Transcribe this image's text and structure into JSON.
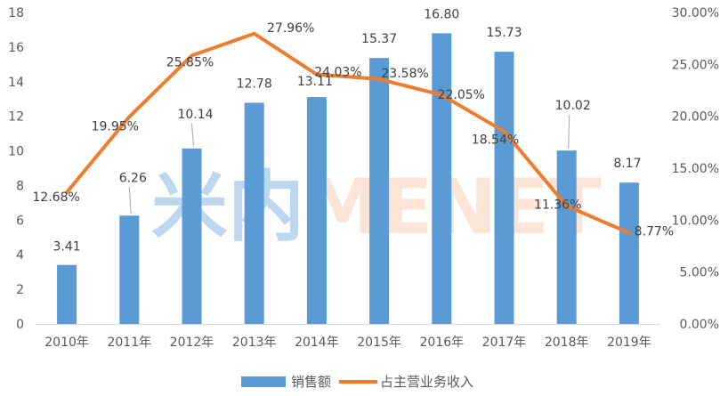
{
  "chart_data": {
    "type": "bar",
    "categories": [
      "2010年",
      "2011年",
      "2012年",
      "2013年",
      "2014年",
      "2015年",
      "2016年",
      "2017年",
      "2018年",
      "2019年"
    ],
    "series": [
      {
        "name": "销售额",
        "type": "bar",
        "axis": "left",
        "color": "#5B9BD5",
        "values": [
          3.41,
          6.26,
          10.14,
          12.78,
          13.11,
          15.37,
          16.8,
          15.73,
          10.02,
          8.17
        ],
        "labels": [
          "3.41",
          "6.26",
          "10.14",
          "12.78",
          "13.11",
          "15.37",
          "16.80",
          "15.73",
          "10.02",
          "8.17"
        ]
      },
      {
        "name": "占主营业务收入",
        "type": "line",
        "axis": "right",
        "color": "#ED7D31",
        "values": [
          12.68,
          19.95,
          25.85,
          27.96,
          24.03,
          23.58,
          22.05,
          18.54,
          11.36,
          8.77
        ],
        "labels": [
          "12.68%",
          "19.95%",
          "25.85%",
          "27.96%",
          "24.03%",
          "23.58%",
          "22.05%",
          "18.54%",
          "11.36%",
          "8.77%"
        ]
      }
    ],
    "left_axis": {
      "ylim": [
        0,
        18
      ],
      "ticks": [
        0,
        2,
        4,
        6,
        8,
        10,
        12,
        14,
        16,
        18
      ],
      "tick_labels": [
        "0",
        "2",
        "4",
        "6",
        "8",
        "10",
        "12",
        "14",
        "16",
        "18"
      ]
    },
    "right_axis": {
      "ylim": [
        0,
        30
      ],
      "ticks": [
        0,
        5,
        10,
        15,
        20,
        25,
        30
      ],
      "tick_labels": [
        "0.00%",
        "5.00%",
        "10.00%",
        "15.00%",
        "20.00%",
        "25.00%",
        "30.00%"
      ]
    },
    "grid": false,
    "legend_position": "bottom",
    "watermark": "米内MENET",
    "watermark_colors": [
      "#BDD7EE",
      "#FBE5D6"
    ]
  }
}
